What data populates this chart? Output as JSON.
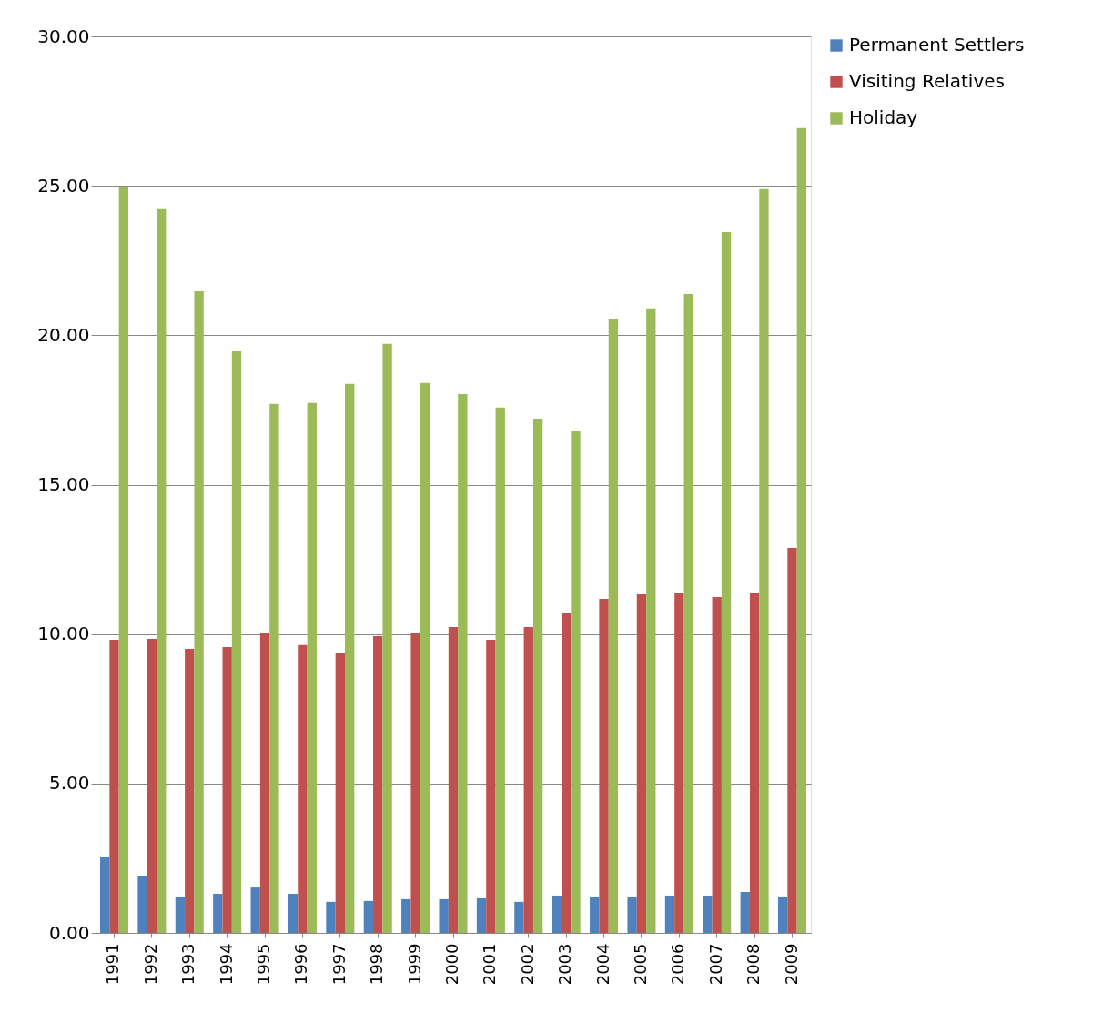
{
  "chart_data": {
    "type": "bar",
    "categories": [
      "1991",
      "1992",
      "1993",
      "1994",
      "1995",
      "1996",
      "1997",
      "1998",
      "1999",
      "2000",
      "2001",
      "2002",
      "2003",
      "2004",
      "2005",
      "2006",
      "2007",
      "2008",
      "2009"
    ],
    "series": [
      {
        "name": "Permanent Settlers",
        "color": "#4f81bd",
        "values": [
          2.53,
          1.89,
          1.19,
          1.31,
          1.52,
          1.31,
          1.04,
          1.07,
          1.13,
          1.13,
          1.16,
          1.04,
          1.25,
          1.19,
          1.19,
          1.25,
          1.25,
          1.37,
          1.19
        ]
      },
      {
        "name": "Visiting Relatives",
        "color": "#c0504d",
        "values": [
          9.81,
          9.84,
          9.5,
          9.56,
          10.02,
          9.63,
          9.35,
          9.93,
          10.05,
          10.23,
          9.81,
          10.23,
          10.72,
          11.18,
          11.33,
          11.39,
          11.24,
          11.36,
          12.88
        ]
      },
      {
        "name": "Holiday",
        "color": "#9bbb59",
        "values": [
          24.95,
          24.22,
          21.47,
          19.46,
          17.7,
          17.73,
          18.37,
          19.71,
          18.4,
          18.03,
          17.58,
          17.21,
          16.78,
          20.53,
          20.9,
          21.38,
          23.45,
          24.89,
          26.93
        ]
      }
    ],
    "ylim": [
      0,
      30
    ],
    "yticks": [
      {
        "value": 0,
        "label": "0.00"
      },
      {
        "value": 5,
        "label": "5.00"
      },
      {
        "value": 10,
        "label": "10.00"
      },
      {
        "value": 15,
        "label": "15.00"
      },
      {
        "value": 20,
        "label": "20.00"
      },
      {
        "value": 25,
        "label": "25.00"
      },
      {
        "value": 30,
        "label": "30.00"
      }
    ],
    "grid": "y",
    "legend": "right"
  }
}
